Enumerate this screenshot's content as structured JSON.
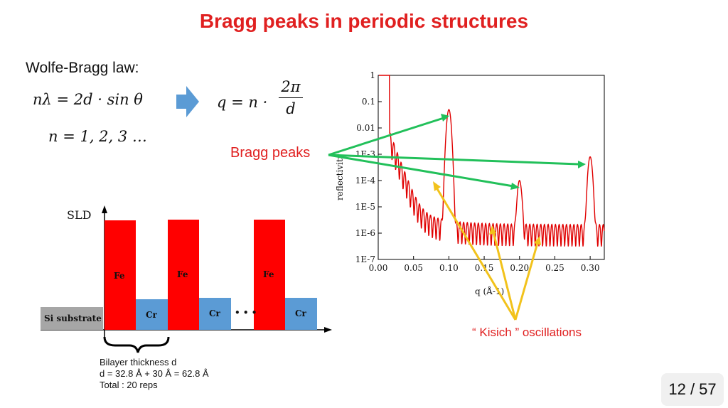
{
  "slide": {
    "title": "Bragg peaks in periodic structures",
    "law_label": "Wolfe-Bragg law:",
    "eq1": "nλ = 2d · sin θ",
    "eq2": "n = 1, 2, 3  …",
    "eq3": "q = n ·",
    "frac_num": "2π",
    "frac_den": "d",
    "bragg_label": "Bragg peaks",
    "kisich_label": "“ Kisich ” oscillations",
    "page": "12 / 57"
  },
  "sld_diagram": {
    "y_label": "SLD",
    "substrate": "Si substrate",
    "layers": [
      {
        "name": "Fe",
        "color": "#ff0000"
      },
      {
        "name": "Cr",
        "color": "#5b9bd5"
      },
      {
        "name": "Fe",
        "color": "#ff0000"
      },
      {
        "name": "Cr",
        "color": "#5b9bd5"
      },
      {
        "name": "Fe",
        "color": "#ff0000"
      },
      {
        "name": "Cr",
        "color": "#5b9bd5"
      }
    ],
    "ellipsis": "• • •",
    "bilayer_line1": "Bilayer thickness d",
    "bilayer_line2": "d = 32.8 Å + 30 Å = 62.8 Å",
    "bilayer_line3": "Total : 20 reps"
  },
  "chart_data": {
    "type": "line",
    "xlabel": "q (Å-1)",
    "ylabel": "reflectivity",
    "xlim": [
      0.0,
      0.32
    ],
    "ylim": [
      1e-07,
      1
    ],
    "yscale": "log",
    "x_ticks": [
      "0.00",
      "0.05",
      "0.10",
      "0.15",
      "0.20",
      "0.25",
      "0.30"
    ],
    "y_ticks": [
      "1E-7",
      "1E-6",
      "1E-5",
      "1E-4",
      "1E-3",
      "0.01",
      "0.1",
      "1"
    ],
    "series_color": "#e00000",
    "bragg_peaks_q": [
      0.1,
      0.2,
      0.3
    ],
    "bragg_peaks_r": [
      0.05,
      0.0001,
      0.0008
    ]
  },
  "colors": {
    "title": "#e02020",
    "arrow_green": "#22c05a",
    "arrow_yellow": "#f2c21b",
    "block_arrow": "#5b9bd5"
  }
}
